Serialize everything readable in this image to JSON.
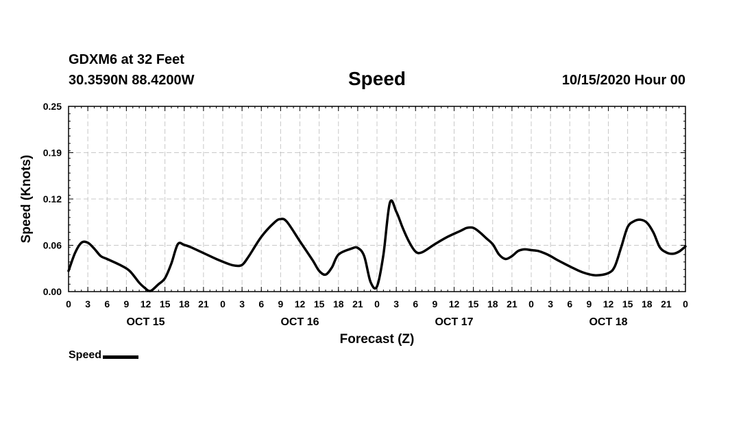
{
  "header": {
    "station": "GDXM6 at 32 Feet",
    "coords": "30.3590N 88.4200W",
    "title": "Speed",
    "runtime": "10/15/2020 Hour 00"
  },
  "legend": {
    "label": "Speed"
  },
  "chart_data": {
    "type": "line",
    "title": "Speed",
    "xlabel": "Forecast (Z)",
    "ylabel": "Speed (Knots)",
    "ylim": [
      0.0,
      0.25
    ],
    "yticks": [
      "0.00",
      "0.06",
      "0.12",
      "0.19",
      "0.25"
    ],
    "xlim": [
      0,
      96
    ],
    "xticks": [
      "0",
      "3",
      "6",
      "9",
      "12",
      "15",
      "18",
      "21",
      "0",
      "3",
      "6",
      "9",
      "12",
      "15",
      "18",
      "21",
      "0",
      "3",
      "6",
      "9",
      "12",
      "15",
      "18",
      "21",
      "0",
      "3",
      "6",
      "9",
      "12",
      "15",
      "18",
      "21",
      "0"
    ],
    "day_labels": [
      {
        "label": "OCT 15",
        "x": 12
      },
      {
        "label": "OCT 16",
        "x": 36
      },
      {
        "label": "OCT 17",
        "x": 60
      },
      {
        "label": "OCT 18",
        "x": 84
      }
    ],
    "grid": true,
    "legend_position": "bottom-left",
    "series": [
      {
        "name": "Speed",
        "color": "#000000",
        "x": [
          0,
          1,
          2,
          3,
          4,
          5,
          6,
          8,
          9.5,
          11,
          12,
          12.5,
          13,
          14,
          15,
          16,
          17,
          18,
          19,
          21,
          23,
          25,
          26,
          27,
          28,
          30,
          32,
          33,
          34,
          36,
          38,
          39,
          40,
          41,
          42,
          44,
          45,
          46,
          47,
          48,
          49,
          50,
          51,
          52,
          53,
          54,
          55,
          57,
          59,
          61,
          62,
          63,
          64,
          65,
          66,
          67,
          68,
          69,
          70,
          71,
          72,
          73,
          74,
          75,
          76,
          78,
          80,
          82,
          84,
          85,
          86,
          87,
          88,
          89,
          90,
          91,
          92,
          93,
          94,
          95,
          96
        ],
        "values": [
          0.028,
          0.052,
          0.066,
          0.066,
          0.058,
          0.048,
          0.044,
          0.036,
          0.028,
          0.012,
          0.004,
          0.001,
          0.002,
          0.01,
          0.018,
          0.038,
          0.064,
          0.063,
          0.06,
          0.052,
          0.044,
          0.037,
          0.035,
          0.036,
          0.047,
          0.074,
          0.093,
          0.098,
          0.094,
          0.068,
          0.042,
          0.028,
          0.023,
          0.033,
          0.05,
          0.058,
          0.059,
          0.048,
          0.013,
          0.007,
          0.05,
          0.12,
          0.108,
          0.086,
          0.067,
          0.054,
          0.053,
          0.064,
          0.074,
          0.082,
          0.086,
          0.086,
          0.08,
          0.072,
          0.064,
          0.05,
          0.044,
          0.048,
          0.055,
          0.057,
          0.056,
          0.055,
          0.052,
          0.048,
          0.043,
          0.034,
          0.026,
          0.022,
          0.025,
          0.034,
          0.06,
          0.087,
          0.095,
          0.097,
          0.093,
          0.08,
          0.06,
          0.053,
          0.051,
          0.054,
          0.061
        ]
      }
    ]
  }
}
